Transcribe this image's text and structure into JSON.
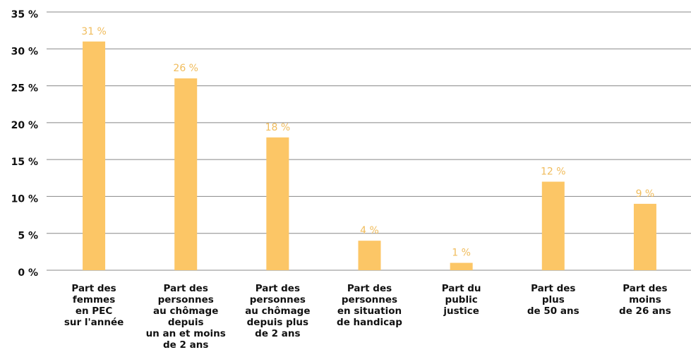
{
  "chart_data": {
    "type": "bar",
    "categories": [
      [
        "Part des",
        "femmes",
        "en PEC",
        "sur l'année"
      ],
      [
        "Part des",
        "personnes",
        "au chômage",
        "depuis",
        "un an et moins",
        "de 2 ans"
      ],
      [
        "Part des",
        "personnes",
        "au chômage",
        "depuis plus",
        "de 2 ans"
      ],
      [
        "Part des",
        "personnes",
        "en situation",
        "de handicap"
      ],
      [
        "Part du",
        "public",
        "justice"
      ],
      [
        "Part des",
        "plus",
        "de 50 ans"
      ],
      [
        "Part des",
        "moins",
        "de 26 ans"
      ]
    ],
    "values": [
      31,
      26,
      18,
      4,
      1,
      12,
      9
    ],
    "value_labels": [
      "31 %",
      "26 %",
      "18 %",
      "4 %",
      "1 %",
      "12 %",
      "9 %"
    ],
    "color": "#fcc666",
    "ylim": [
      0,
      35
    ],
    "yticks": [
      {
        "value": 0,
        "label": "0 %"
      },
      {
        "value": 5,
        "label": "5 %"
      },
      {
        "value": 10,
        "label": "10 %"
      },
      {
        "value": 15,
        "label": "15 %"
      },
      {
        "value": 20,
        "label": "20 %"
      },
      {
        "value": 25,
        "label": "25 %"
      },
      {
        "value": 30,
        "label": "30 %"
      },
      {
        "value": 35,
        "label": "35 %"
      }
    ],
    "grid": true
  }
}
